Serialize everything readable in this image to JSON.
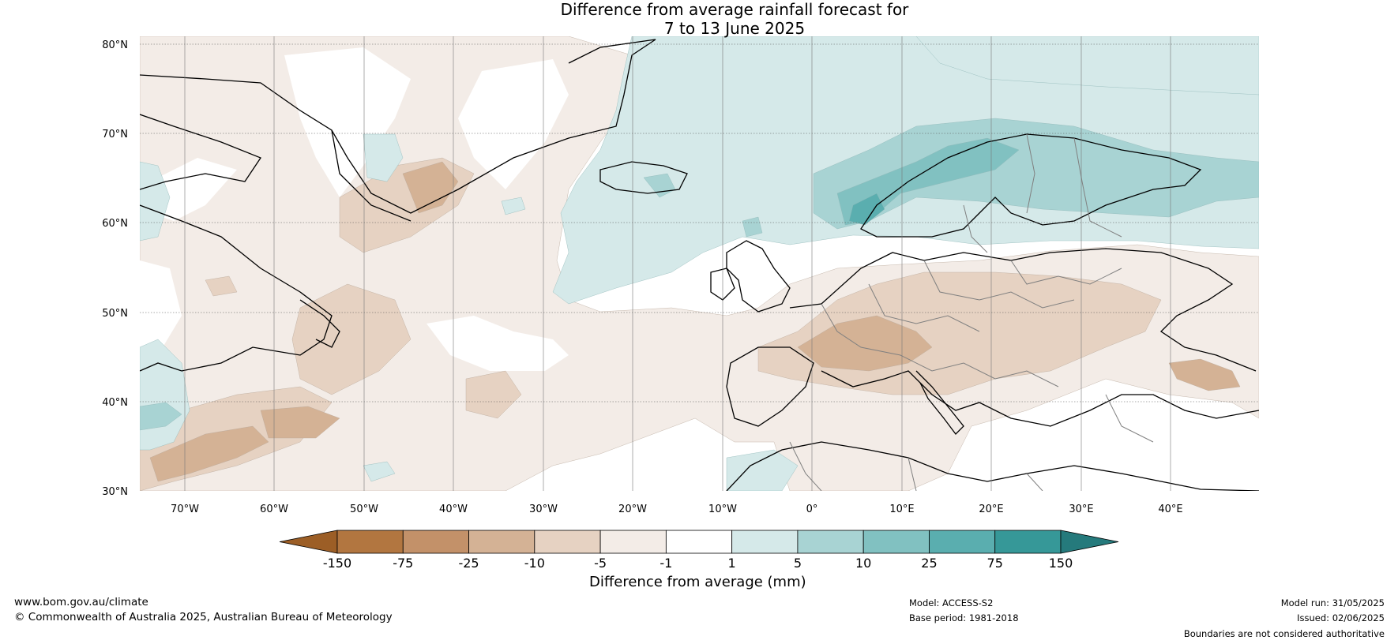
{
  "title": {
    "line1": "Difference from average rainfall forecast for",
    "line2": "7 to 13 June 2025"
  },
  "map": {
    "lat_labels": [
      "80°N",
      "70°N",
      "60°N",
      "50°N",
      "40°N",
      "30°N"
    ],
    "lon_labels": [
      "70°W",
      "60°W",
      "50°W",
      "40°W",
      "30°W",
      "20°W",
      "10°W",
      "0°",
      "10°E",
      "20°E",
      "30°E",
      "40°E"
    ]
  },
  "colorbar": {
    "ticks": [
      "-150",
      "-75",
      "-25",
      "-10",
      "-5",
      "-1",
      "1",
      "5",
      "10",
      "25",
      "75",
      "150"
    ],
    "colors": [
      "#9c5e26",
      "#b27640",
      "#c39169",
      "#d4b295",
      "#e6d2c2",
      "#f3ece7",
      "#ffffff",
      "#d5e9e9",
      "#a8d3d3",
      "#81c1c1",
      "#5aaeaf",
      "#369898",
      "#257a7c"
    ],
    "label": "Difference from average (mm)"
  },
  "footer": {
    "website": "www.bom.gov.au/climate",
    "copyright": "© Commonwealth of Australia 2025, Australian Bureau of Meteorology",
    "model": "Model: ACCESS-S2",
    "base_period": "Base period: 1981-2018",
    "model_run": "Model run: 31/05/2025",
    "issued": "Issued: 02/06/2025",
    "disclaimer": "Boundaries are not considered authoritative"
  }
}
